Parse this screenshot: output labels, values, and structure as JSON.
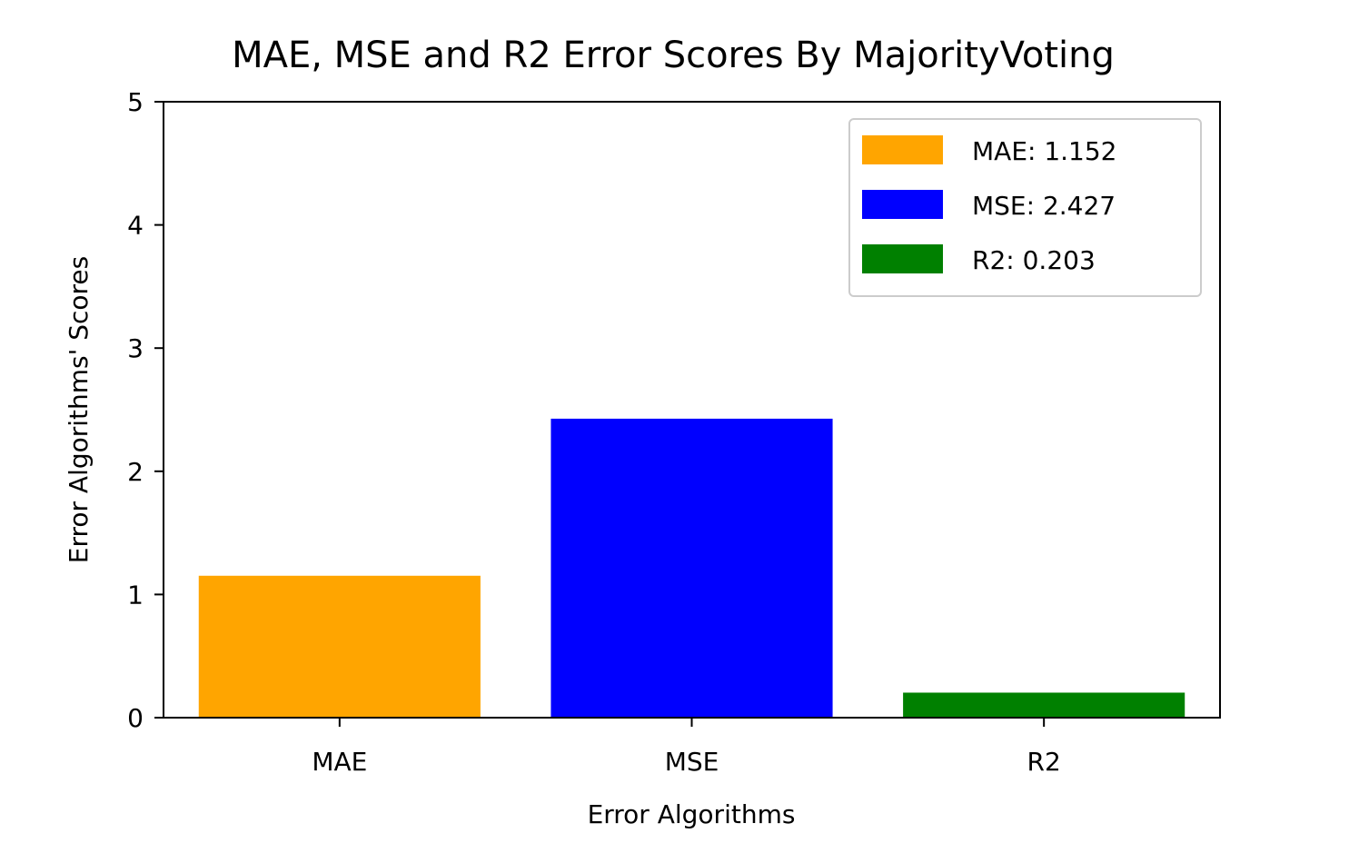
{
  "chart_data": {
    "type": "bar",
    "title": "MAE, MSE and R2 Error Scores By MajorityVoting",
    "xlabel": "Error Algorithms",
    "ylabel": "Error Algorithms' Scores",
    "categories": [
      "MAE",
      "MSE",
      "R2"
    ],
    "values": [
      1.152,
      2.427,
      0.203
    ],
    "colors": [
      "#ffa500",
      "#0000ff",
      "#008000"
    ],
    "ylim": [
      0,
      5
    ],
    "yticks": [
      0,
      1,
      2,
      3,
      4,
      5
    ],
    "grid": false,
    "legend": {
      "placement": "top-right",
      "entries": [
        {
          "label": "MAE: 1.152",
          "color": "#ffa500"
        },
        {
          "label": "MSE: 2.427",
          "color": "#0000ff"
        },
        {
          "label": "R2: 0.203",
          "color": "#008000"
        }
      ]
    }
  }
}
